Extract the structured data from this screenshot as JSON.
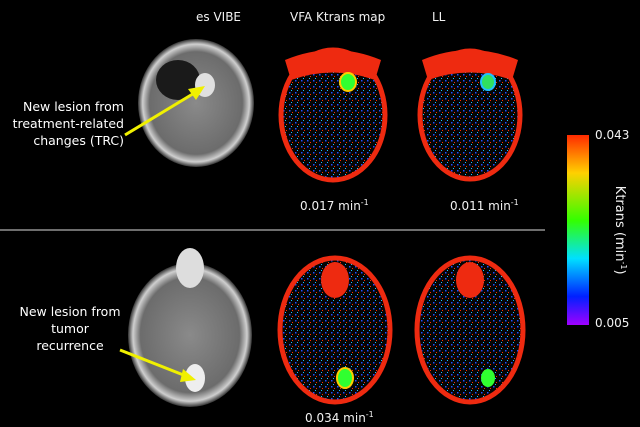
{
  "columns": {
    "vibe": "es VIBE",
    "vfa": "VFA Ktrans map",
    "ll": "LL"
  },
  "rows": [
    {
      "label_lines": [
        "New lesion from",
        "treatment-related",
        "changes (TRC)"
      ],
      "vfa_value": "0.017 min",
      "ll_value": "0.011 min",
      "unit_exp": "-1"
    },
    {
      "label_lines": [
        "New lesion from",
        "tumor",
        "recurrence"
      ],
      "vfa_value": "0.034 min",
      "unit_exp": "-1"
    }
  ],
  "colorbar": {
    "max": "0.043",
    "min": "0.005",
    "title": "Ktrans (min",
    "title_exp": "-1",
    "title_close": ")",
    "colors": [
      "#ff2a00",
      "#ffd000",
      "#33ff00",
      "#00e0ff",
      "#0020ff",
      "#a000ff"
    ]
  },
  "arrow_color": "#f0f000"
}
